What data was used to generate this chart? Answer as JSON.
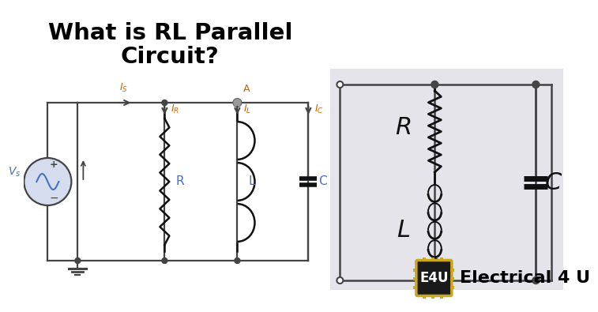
{
  "title_line1": "What is RL Parallel",
  "title_line2": "Circuit?",
  "title_fontsize": 22,
  "title_color": "#000000",
  "bg_color": "#ffffff",
  "circuit_bg_color": "#e4e4ea",
  "wire_color": "#444444",
  "component_color": "#111111",
  "label_color_blue": "#4472c4",
  "label_color_orange": "#cc6600",
  "node_color": "#888888",
  "brand_color": "#c8a820",
  "brand_bg": "#2a2a2a",
  "brand_text": "E4U",
  "brand_label": "Electrical 4 U"
}
